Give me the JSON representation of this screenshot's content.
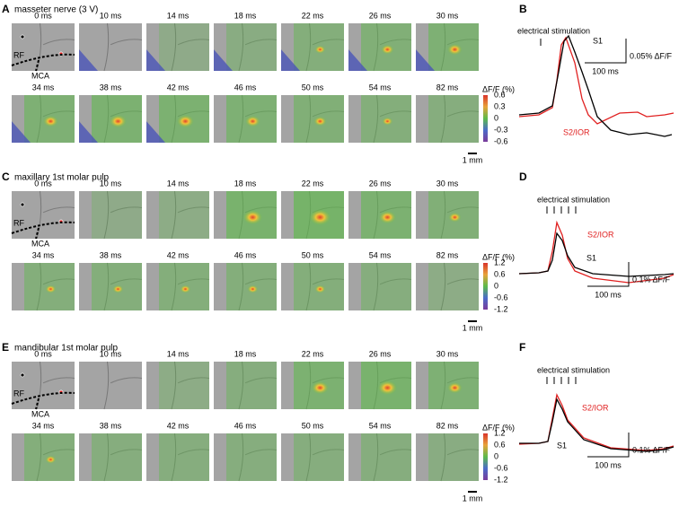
{
  "panels": [
    {
      "label": "A",
      "title": "masseter nerve (3 V)",
      "frames": [
        "0 ms",
        "10 ms",
        "14 ms",
        "18 ms",
        "22 ms",
        "26 ms",
        "30 ms",
        "34 ms",
        "38 ms",
        "42 ms",
        "46 ms",
        "50 ms",
        "54 ms",
        "82 ms"
      ],
      "landmarks": [
        "RF",
        "MCA"
      ],
      "colorbar": {
        "title": "ΔF/F (%)",
        "ticks": [
          "0.6",
          "0.3",
          "0",
          "-0.3",
          "-0.6"
        ]
      },
      "scale_bar": "1 mm"
    },
    {
      "label": "C",
      "title": "maxillary 1st molar pulp",
      "frames": [
        "0 ms",
        "10 ms",
        "14 ms",
        "18 ms",
        "22 ms",
        "26 ms",
        "30 ms",
        "34 ms",
        "38 ms",
        "42 ms",
        "46 ms",
        "50 ms",
        "54 ms",
        "82 ms"
      ],
      "landmarks": [
        "RF",
        "MCA"
      ],
      "colorbar": {
        "title": "ΔF/F (%)",
        "ticks": [
          "1.2",
          "0.6",
          "0",
          "-0.6",
          "-1.2"
        ]
      },
      "scale_bar": "1 mm"
    },
    {
      "label": "E",
      "title": "mandibular 1st molar pulp",
      "frames": [
        "0 ms",
        "10 ms",
        "14 ms",
        "18 ms",
        "22 ms",
        "26 ms",
        "30 ms",
        "34 ms",
        "38 ms",
        "42 ms",
        "46 ms",
        "50 ms",
        "54 ms",
        "82 ms"
      ],
      "landmarks": [
        "RF",
        "MCA"
      ],
      "colorbar": {
        "title": "ΔF/F (%)",
        "ticks": [
          "1.2",
          "0.6",
          "0",
          "-0.6",
          "-1.2"
        ]
      },
      "scale_bar": "1 mm"
    }
  ],
  "traces": [
    {
      "label": "B",
      "stimulus": "electrical stimulation",
      "series": [
        "S1",
        "S2/IOR"
      ],
      "scale": "0.05% ΔF/F",
      "time": "100 ms"
    },
    {
      "label": "D",
      "stimulus": "electrical stimulation",
      "series": [
        "S1",
        "S2/IOR"
      ],
      "scale": "0.1% ΔF/F",
      "time": "100 ms"
    },
    {
      "label": "F",
      "stimulus": "electrical stimulation",
      "series": [
        "S1",
        "S2/IOR"
      ],
      "scale": "0.1% ΔF/F",
      "time": "100 ms"
    }
  ]
}
